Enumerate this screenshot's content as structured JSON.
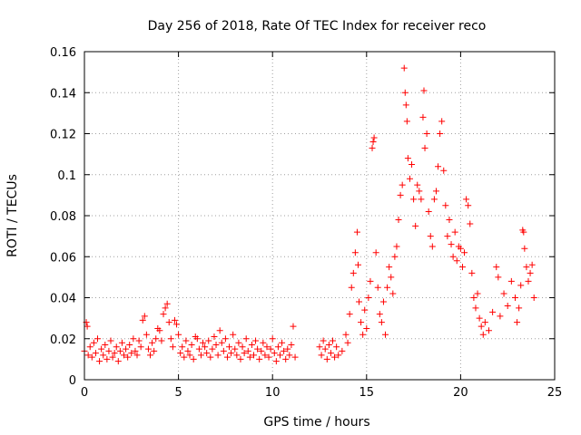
{
  "chart_data": {
    "type": "scatter",
    "title": "Day 256 of 2018, Rate Of TEC Index for receiver reco",
    "xlabel": "GPS time / hours",
    "ylabel": "ROTI / TECUs",
    "xlim": [
      0,
      25
    ],
    "ylim": [
      0,
      0.16
    ],
    "xticks": [
      0,
      5,
      10,
      15,
      20,
      25
    ],
    "xtick_labels": [
      "0",
      "5",
      "10",
      "15",
      "20",
      "25"
    ],
    "yticks": [
      0,
      0.02,
      0.04,
      0.06,
      0.08,
      0.1,
      0.12,
      0.14,
      0.16
    ],
    "ytick_labels": [
      "0",
      "0.02",
      "0.04",
      "0.06",
      "0.08",
      "0.1",
      "0.12",
      "0.14",
      "0.16"
    ],
    "grid": true,
    "marker": "+",
    "color": "#ff0000",
    "series": [
      {
        "name": "ROTI",
        "points": [
          [
            0.0,
            0.014
          ],
          [
            0.1,
            0.028
          ],
          [
            0.15,
            0.026
          ],
          [
            0.2,
            0.012
          ],
          [
            0.3,
            0.016
          ],
          [
            0.4,
            0.011
          ],
          [
            0.5,
            0.018
          ],
          [
            0.6,
            0.013
          ],
          [
            0.7,
            0.02
          ],
          [
            0.8,
            0.009
          ],
          [
            0.9,
            0.015
          ],
          [
            1.0,
            0.012
          ],
          [
            1.1,
            0.017
          ],
          [
            1.2,
            0.01
          ],
          [
            1.3,
            0.014
          ],
          [
            1.4,
            0.019
          ],
          [
            1.5,
            0.011
          ],
          [
            1.6,
            0.013
          ],
          [
            1.7,
            0.016
          ],
          [
            1.8,
            0.009
          ],
          [
            1.9,
            0.014
          ],
          [
            2.0,
            0.018
          ],
          [
            2.1,
            0.012
          ],
          [
            2.2,
            0.015
          ],
          [
            2.3,
            0.011
          ],
          [
            2.4,
            0.017
          ],
          [
            2.5,
            0.013
          ],
          [
            2.6,
            0.02
          ],
          [
            2.7,
            0.014
          ],
          [
            2.8,
            0.012
          ],
          [
            2.9,
            0.019
          ],
          [
            3.0,
            0.016
          ],
          [
            3.1,
            0.029
          ],
          [
            3.2,
            0.031
          ],
          [
            3.3,
            0.022
          ],
          [
            3.4,
            0.015
          ],
          [
            3.5,
            0.012
          ],
          [
            3.6,
            0.018
          ],
          [
            3.7,
            0.014
          ],
          [
            3.8,
            0.02
          ],
          [
            3.9,
            0.025
          ],
          [
            4.0,
            0.024
          ],
          [
            4.1,
            0.019
          ],
          [
            4.2,
            0.032
          ],
          [
            4.3,
            0.035
          ],
          [
            4.4,
            0.037
          ],
          [
            4.5,
            0.028
          ],
          [
            4.6,
            0.02
          ],
          [
            4.7,
            0.016
          ],
          [
            4.8,
            0.029
          ],
          [
            4.9,
            0.027
          ],
          [
            5.0,
            0.022
          ],
          [
            5.1,
            0.013
          ],
          [
            5.2,
            0.016
          ],
          [
            5.3,
            0.011
          ],
          [
            5.4,
            0.019
          ],
          [
            5.5,
            0.014
          ],
          [
            5.6,
            0.012
          ],
          [
            5.7,
            0.017
          ],
          [
            5.8,
            0.01
          ],
          [
            5.9,
            0.021
          ],
          [
            6.0,
            0.02
          ],
          [
            6.1,
            0.015
          ],
          [
            6.2,
            0.012
          ],
          [
            6.3,
            0.018
          ],
          [
            6.4,
            0.016
          ],
          [
            6.5,
            0.013
          ],
          [
            6.6,
            0.019
          ],
          [
            6.7,
            0.011
          ],
          [
            6.8,
            0.015
          ],
          [
            6.9,
            0.021
          ],
          [
            7.0,
            0.017
          ],
          [
            7.1,
            0.012
          ],
          [
            7.2,
            0.024
          ],
          [
            7.3,
            0.018
          ],
          [
            7.4,
            0.014
          ],
          [
            7.5,
            0.02
          ],
          [
            7.6,
            0.011
          ],
          [
            7.7,
            0.016
          ],
          [
            7.8,
            0.013
          ],
          [
            7.9,
            0.022
          ],
          [
            8.0,
            0.015
          ],
          [
            8.1,
            0.012
          ],
          [
            8.2,
            0.018
          ],
          [
            8.3,
            0.01
          ],
          [
            8.4,
            0.016
          ],
          [
            8.5,
            0.013
          ],
          [
            8.6,
            0.02
          ],
          [
            8.7,
            0.014
          ],
          [
            8.8,
            0.011
          ],
          [
            8.9,
            0.017
          ],
          [
            9.0,
            0.012
          ],
          [
            9.1,
            0.019
          ],
          [
            9.2,
            0.015
          ],
          [
            9.3,
            0.01
          ],
          [
            9.4,
            0.014
          ],
          [
            9.5,
            0.018
          ],
          [
            9.6,
            0.012
          ],
          [
            9.7,
            0.016
          ],
          [
            9.8,
            0.011
          ],
          [
            9.9,
            0.015
          ],
          [
            10.0,
            0.02
          ],
          [
            10.1,
            0.013
          ],
          [
            10.2,
            0.009
          ],
          [
            10.3,
            0.016
          ],
          [
            10.4,
            0.012
          ],
          [
            10.5,
            0.018
          ],
          [
            10.6,
            0.014
          ],
          [
            10.7,
            0.01
          ],
          [
            10.8,
            0.015
          ],
          [
            10.9,
            0.012
          ],
          [
            11.0,
            0.017
          ],
          [
            11.1,
            0.026
          ],
          [
            11.2,
            0.011
          ],
          [
            12.5,
            0.016
          ],
          [
            12.6,
            0.012
          ],
          [
            12.7,
            0.019
          ],
          [
            12.8,
            0.015
          ],
          [
            12.9,
            0.01
          ],
          [
            13.0,
            0.017
          ],
          [
            13.1,
            0.013
          ],
          [
            13.2,
            0.019
          ],
          [
            13.3,
            0.011
          ],
          [
            13.4,
            0.016
          ],
          [
            13.5,
            0.012
          ],
          [
            13.7,
            0.014
          ],
          [
            13.9,
            0.022
          ],
          [
            14.0,
            0.018
          ],
          [
            14.1,
            0.032
          ],
          [
            14.2,
            0.045
          ],
          [
            14.3,
            0.052
          ],
          [
            14.4,
            0.062
          ],
          [
            14.5,
            0.072
          ],
          [
            14.55,
            0.056
          ],
          [
            14.6,
            0.038
          ],
          [
            14.7,
            0.028
          ],
          [
            14.8,
            0.022
          ],
          [
            14.9,
            0.034
          ],
          [
            15.0,
            0.025
          ],
          [
            15.1,
            0.04
          ],
          [
            15.2,
            0.048
          ],
          [
            15.3,
            0.113
          ],
          [
            15.35,
            0.116
          ],
          [
            15.4,
            0.118
          ],
          [
            15.5,
            0.062
          ],
          [
            15.6,
            0.045
          ],
          [
            15.7,
            0.032
          ],
          [
            15.8,
            0.028
          ],
          [
            15.9,
            0.038
          ],
          [
            16.0,
            0.022
          ],
          [
            16.1,
            0.045
          ],
          [
            16.2,
            0.055
          ],
          [
            16.3,
            0.05
          ],
          [
            16.4,
            0.042
          ],
          [
            16.5,
            0.06
          ],
          [
            16.6,
            0.065
          ],
          [
            16.7,
            0.078
          ],
          [
            16.8,
            0.09
          ],
          [
            16.9,
            0.095
          ],
          [
            17.0,
            0.152
          ],
          [
            17.05,
            0.14
          ],
          [
            17.1,
            0.134
          ],
          [
            17.15,
            0.126
          ],
          [
            17.2,
            0.108
          ],
          [
            17.3,
            0.098
          ],
          [
            17.4,
            0.105
          ],
          [
            17.5,
            0.088
          ],
          [
            17.6,
            0.075
          ],
          [
            17.7,
            0.095
          ],
          [
            17.8,
            0.092
          ],
          [
            17.9,
            0.088
          ],
          [
            18.0,
            0.128
          ],
          [
            18.05,
            0.141
          ],
          [
            18.1,
            0.113
          ],
          [
            18.2,
            0.12
          ],
          [
            18.3,
            0.082
          ],
          [
            18.4,
            0.07
          ],
          [
            18.5,
            0.065
          ],
          [
            18.6,
            0.088
          ],
          [
            18.7,
            0.092
          ],
          [
            18.8,
            0.104
          ],
          [
            18.9,
            0.12
          ],
          [
            19.0,
            0.126
          ],
          [
            19.1,
            0.102
          ],
          [
            19.2,
            0.085
          ],
          [
            19.3,
            0.07
          ],
          [
            19.4,
            0.078
          ],
          [
            19.5,
            0.066
          ],
          [
            19.6,
            0.06
          ],
          [
            19.7,
            0.072
          ],
          [
            19.8,
            0.058
          ],
          [
            19.9,
            0.065
          ],
          [
            20.0,
            0.064
          ],
          [
            20.1,
            0.055
          ],
          [
            20.2,
            0.062
          ],
          [
            20.3,
            0.088
          ],
          [
            20.4,
            0.085
          ],
          [
            20.5,
            0.076
          ],
          [
            20.6,
            0.052
          ],
          [
            20.7,
            0.04
          ],
          [
            20.8,
            0.035
          ],
          [
            20.9,
            0.042
          ],
          [
            21.0,
            0.03
          ],
          [
            21.1,
            0.026
          ],
          [
            21.2,
            0.022
          ],
          [
            21.3,
            0.028
          ],
          [
            21.5,
            0.024
          ],
          [
            21.7,
            0.033
          ],
          [
            21.9,
            0.055
          ],
          [
            22.0,
            0.05
          ],
          [
            22.1,
            0.031
          ],
          [
            22.3,
            0.042
          ],
          [
            22.5,
            0.036
          ],
          [
            22.7,
            0.048
          ],
          [
            22.9,
            0.04
          ],
          [
            23.0,
            0.028
          ],
          [
            23.1,
            0.035
          ],
          [
            23.2,
            0.046
          ],
          [
            23.3,
            0.073
          ],
          [
            23.35,
            0.072
          ],
          [
            23.4,
            0.064
          ],
          [
            23.5,
            0.055
          ],
          [
            23.6,
            0.048
          ],
          [
            23.7,
            0.052
          ],
          [
            23.8,
            0.056
          ],
          [
            23.9,
            0.04
          ]
        ]
      }
    ]
  }
}
